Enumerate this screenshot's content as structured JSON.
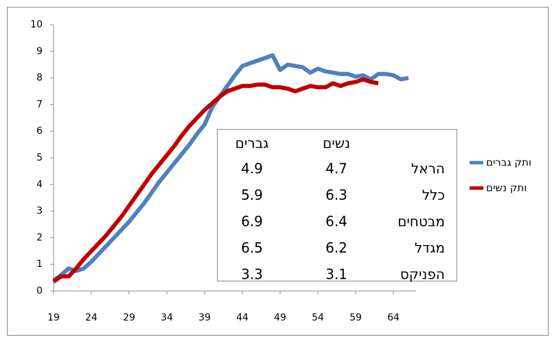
{
  "chart_data": {
    "type": "line",
    "x": [
      19,
      20,
      21,
      22,
      23,
      24,
      25,
      26,
      27,
      28,
      29,
      30,
      31,
      32,
      33,
      34,
      35,
      36,
      37,
      38,
      39,
      40,
      41,
      42,
      43,
      44,
      45,
      46,
      47,
      48,
      49,
      50,
      51,
      52,
      53,
      54,
      55,
      56,
      57,
      58,
      59,
      60,
      61,
      62,
      63,
      64,
      65,
      66
    ],
    "series": [
      {
        "name": "ותק גברים",
        "color": "#4f81bd",
        "values": [
          0.4,
          0.6,
          0.85,
          0.75,
          0.85,
          1.1,
          1.4,
          1.7,
          2.0,
          2.3,
          2.6,
          2.95,
          3.3,
          3.7,
          4.1,
          4.45,
          4.8,
          5.15,
          5.5,
          5.9,
          6.25,
          6.9,
          7.3,
          7.7,
          8.1,
          8.45,
          8.55,
          8.65,
          8.75,
          8.85,
          8.3,
          8.5,
          8.45,
          8.4,
          8.2,
          8.35,
          8.25,
          8.2,
          8.15,
          8.15,
          8.05,
          8.1,
          7.95,
          8.15,
          8.15,
          8.1,
          7.95,
          8.0
        ]
      },
      {
        "name": "ותק נשים",
        "color": "#c00000",
        "values": [
          0.35,
          0.55,
          0.55,
          0.85,
          1.2,
          1.5,
          1.8,
          2.1,
          2.45,
          2.8,
          3.2,
          3.6,
          4.0,
          4.4,
          4.75,
          5.1,
          5.45,
          5.85,
          6.2,
          6.5,
          6.8,
          7.05,
          7.3,
          7.5,
          7.6,
          7.7,
          7.7,
          7.75,
          7.75,
          7.65,
          7.65,
          7.6,
          7.5,
          7.6,
          7.7,
          7.65,
          7.65,
          7.8,
          7.7,
          7.8,
          7.85,
          7.95,
          7.85,
          7.8,
          null,
          null,
          null,
          null
        ]
      }
    ],
    "xlim": [
      19,
      67
    ],
    "xticks": [
      19,
      24,
      29,
      34,
      39,
      44,
      49,
      54,
      59,
      64
    ],
    "ylim": [
      0,
      10
    ],
    "yticks": [
      0,
      1,
      2,
      3,
      4,
      5,
      6,
      7,
      8,
      9,
      10
    ],
    "legend": "right",
    "table": {
      "columns": [
        "נשים",
        "גברים"
      ],
      "rows": [
        {
          "label": "הראל",
          "values": [
            4.7,
            4.9
          ]
        },
        {
          "label": "כלל",
          "values": [
            6.3,
            5.9
          ]
        },
        {
          "label": "מבטחים",
          "values": [
            6.4,
            6.9
          ]
        },
        {
          "label": "מגדל",
          "values": [
            6.2,
            6.5
          ]
        },
        {
          "label": "הפניקס",
          "values": [
            3.1,
            3.3
          ]
        }
      ]
    }
  }
}
